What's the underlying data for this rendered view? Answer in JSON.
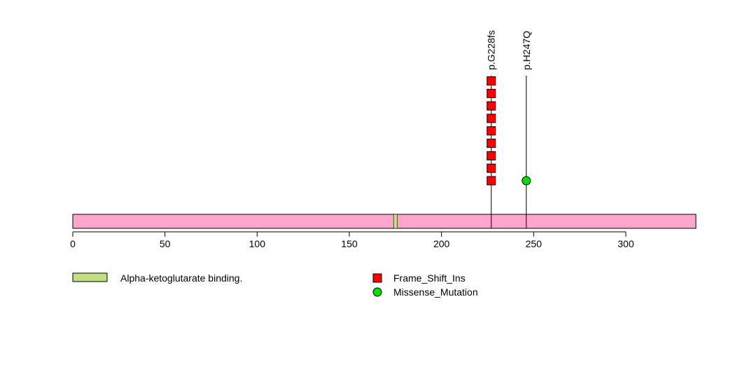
{
  "chart_data": {
    "type": "lollipop",
    "x_axis": {
      "ticks": [
        0,
        50,
        100,
        150,
        200,
        250,
        300
      ],
      "tick_labels": [
        "0",
        "50",
        "100",
        "150",
        "200",
        "250",
        "300"
      ],
      "xlim": [
        0,
        338
      ]
    },
    "protein": {
      "length": 338,
      "color": "#FFA6CD"
    },
    "domains": [
      {
        "name": "Alpha-ketoglutarate binding.",
        "start": 174,
        "end": 176,
        "color": "#C2DF82"
      }
    ],
    "mutations": [
      {
        "label": "p.G228fs",
        "position": 227,
        "count": 9,
        "type": "Frame_Shift_Ins",
        "shape": "square",
        "color": "#FF0000"
      },
      {
        "label": "p.H247Q",
        "position": 246,
        "count": 1,
        "type": "Missense_Mutation",
        "shape": "circle",
        "color": "#00DD00"
      }
    ],
    "legend": {
      "domains": [
        {
          "label": "Alpha-ketoglutarate binding.",
          "color": "#C2DF82"
        }
      ],
      "mutation_types": [
        {
          "label": "Frame_Shift_Ins",
          "shape": "square",
          "color": "#FF0000"
        },
        {
          "label": "Missense_Mutation",
          "shape": "circle",
          "color": "#00DD00"
        }
      ]
    }
  }
}
